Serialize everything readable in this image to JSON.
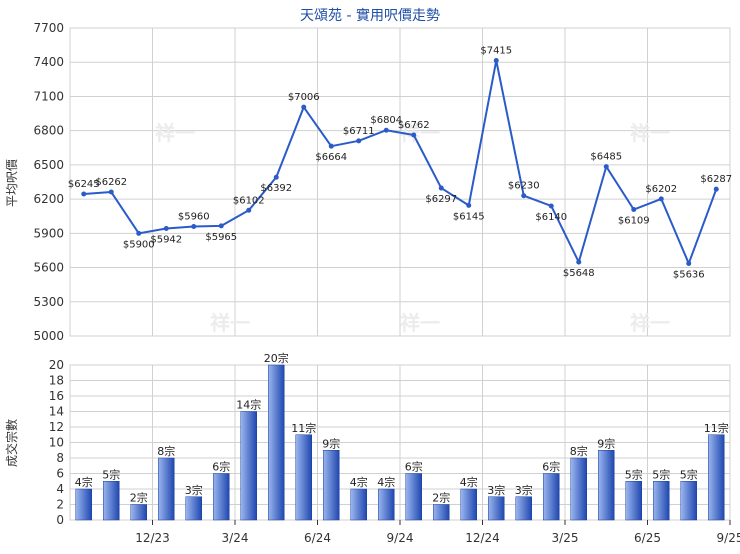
{
  "title": "天頌苑 - 實用呎價走勢",
  "watermark": "祥一",
  "colors": {
    "title": "#1f4ea8",
    "line": "#2a5bc9",
    "bar_light": "#9bb6ee",
    "bar_dark": "#1f47b0",
    "grid": "#d0d0d0",
    "axis": "#333333",
    "watermark": "#ececec"
  },
  "chart_data": [
    {
      "type": "line",
      "ylabel": "平均呎價",
      "ylim": [
        5000,
        7700
      ],
      "yticks": [
        5000,
        5300,
        5600,
        5900,
        6200,
        6500,
        6800,
        7100,
        7400,
        7700
      ],
      "grid": true,
      "values": [
        6245,
        6262,
        5900,
        5942,
        5960,
        5965,
        6102,
        6392,
        7006,
        6664,
        6711,
        6804,
        6762,
        6297,
        6145,
        7415,
        6230,
        6140,
        5648,
        6485,
        6109,
        6202,
        5636,
        6287
      ],
      "labels": [
        "$6245",
        "$6262",
        "$5900",
        "$5942",
        "$5960",
        "$5965",
        "$6102",
        "$6392",
        "$7006",
        "$6664",
        "$6711",
        "$6804",
        "$6762",
        "$6297",
        "$6145",
        "$7415",
        "$6230",
        "$6140",
        "$5648",
        "$6485",
        "$6109",
        "$6202",
        "$5636",
        "$6287"
      ]
    },
    {
      "type": "bar",
      "ylabel": "成交宗數",
      "ylim": [
        0,
        20
      ],
      "yticks": [
        0,
        2,
        4,
        6,
        8,
        10,
        12,
        14,
        16,
        18,
        20
      ],
      "grid": true,
      "values": [
        4,
        5,
        2,
        8,
        3,
        6,
        14,
        20,
        11,
        9,
        4,
        4,
        6,
        2,
        4,
        3,
        3,
        6,
        8,
        9,
        5,
        5,
        5,
        11
      ],
      "labels": [
        "4宗",
        "5宗",
        "2宗",
        "8宗",
        "3宗",
        "6宗",
        "14宗",
        "20宗",
        "11宗",
        "9宗",
        "4宗",
        "4宗",
        "6宗",
        "2宗",
        "4宗",
        "3宗",
        "3宗",
        "6宗",
        "8宗",
        "9宗",
        "5宗",
        "5宗",
        "5宗",
        "11宗"
      ],
      "xtick_labels": [
        "12/23",
        "3/24",
        "6/24",
        "9/24",
        "12/24",
        "3/25",
        "6/25",
        "9/25"
      ]
    }
  ]
}
